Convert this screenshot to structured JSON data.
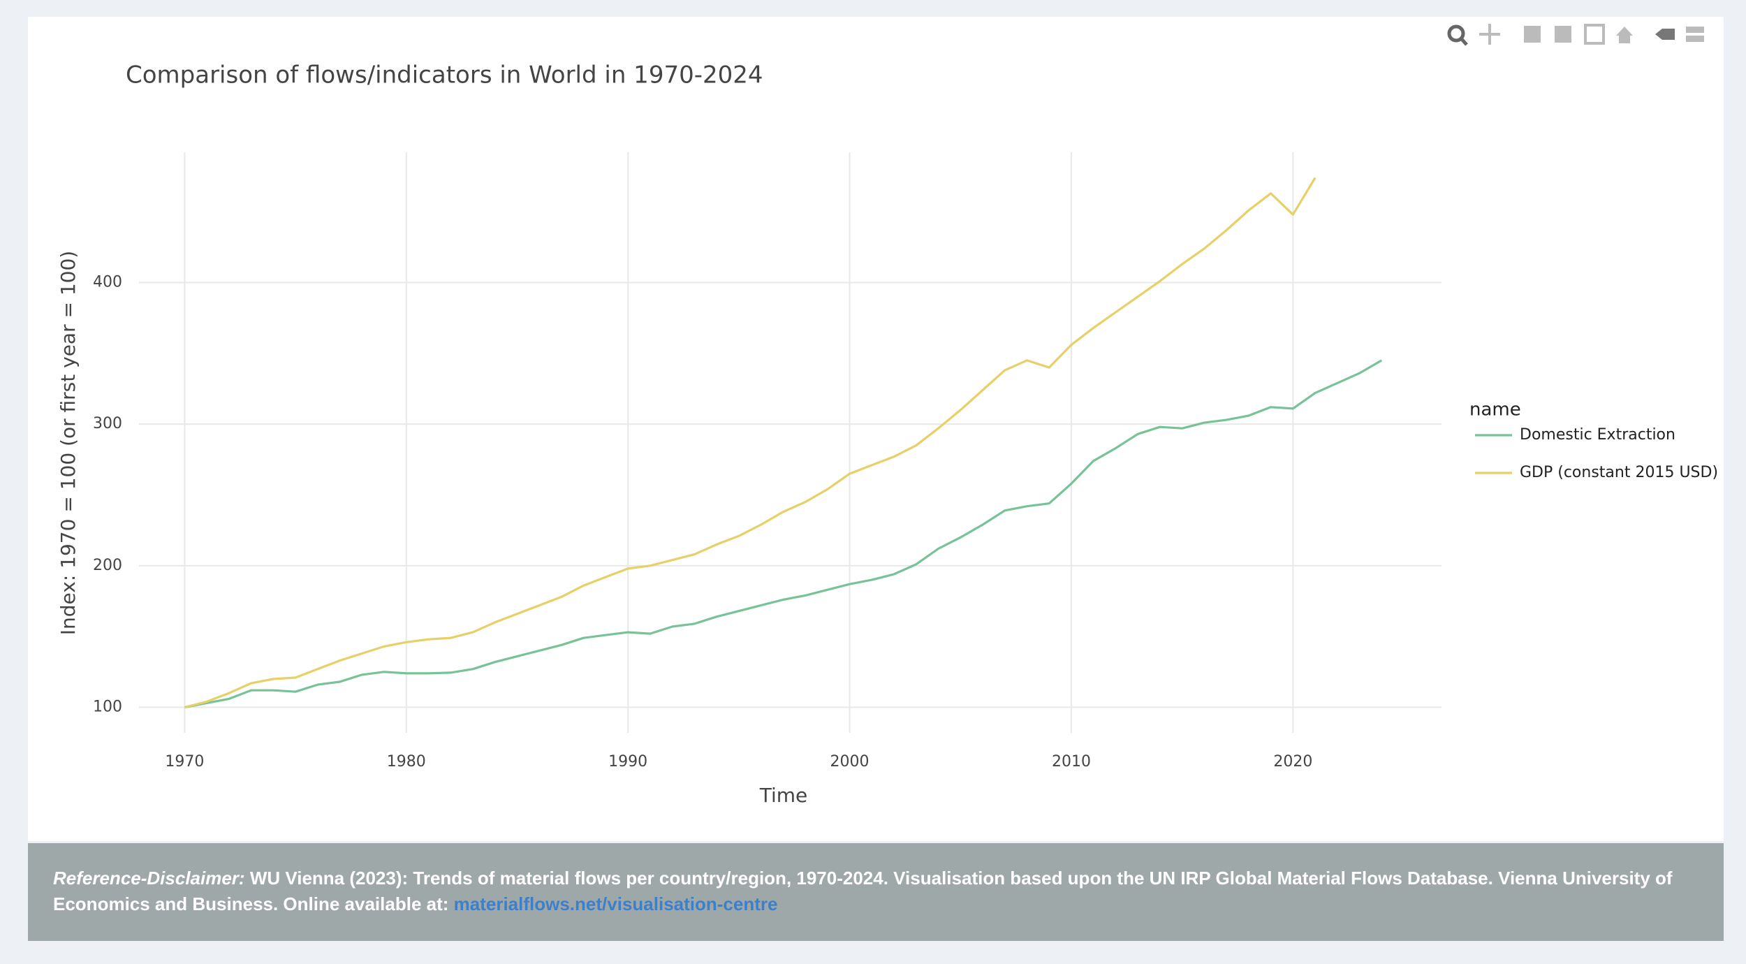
{
  "chart_data": {
    "type": "line",
    "title": "Comparison of flows/indicators in World in 1970-2024",
    "x_label": "Time",
    "y_label": "Index: 1970 = 100 (or first year = 100)",
    "legend_title": "name",
    "x": [
      1970,
      1971,
      1972,
      1973,
      1974,
      1975,
      1976,
      1977,
      1978,
      1979,
      1980,
      1981,
      1982,
      1983,
      1984,
      1985,
      1986,
      1987,
      1988,
      1989,
      1990,
      1991,
      1992,
      1993,
      1994,
      1995,
      1996,
      1997,
      1998,
      1999,
      2000,
      2001,
      2002,
      2003,
      2004,
      2005,
      2006,
      2007,
      2008,
      2009,
      2010,
      2011,
      2012,
      2013,
      2014,
      2015,
      2016,
      2017,
      2018,
      2019,
      2020,
      2021,
      2022,
      2023,
      2024
    ],
    "series": [
      {
        "name": "Domestic Extraction",
        "color": "#78c297",
        "values": [
          100,
          103,
          106,
          112,
          112,
          111,
          116,
          118,
          123,
          125,
          124,
          124,
          124.5,
          127,
          132,
          136,
          140,
          144,
          149,
          151,
          153,
          152,
          157,
          159,
          164,
          168,
          172,
          176,
          179,
          183,
          187,
          190,
          194,
          201,
          212,
          220,
          229,
          239,
          242,
          244,
          258,
          274,
          283,
          293,
          298,
          297,
          301,
          303,
          306,
          312,
          311,
          322,
          329,
          336,
          345
        ]
      },
      {
        "name": "GDP (constant 2015 USD)",
        "color": "#e6d067",
        "values": [
          100,
          104,
          110,
          117,
          120,
          121,
          127,
          133,
          138,
          143,
          146,
          148,
          149,
          153,
          160,
          166,
          172,
          178,
          186,
          192,
          198,
          200,
          204,
          208,
          215,
          221,
          229,
          238,
          245,
          254,
          265,
          271,
          277,
          285,
          297,
          310,
          324,
          338,
          345,
          340,
          356,
          368,
          379,
          390,
          401,
          413,
          424,
          437,
          451,
          463,
          448,
          474,
          null,
          null,
          null
        ]
      }
    ],
    "xlim": [
      1967.94,
      2026.7
    ],
    "xticks": [
      1970,
      1980,
      1990,
      2000,
      2010,
      2020
    ],
    "ylim": [
      82,
      492
    ],
    "yticks": [
      100,
      200,
      300,
      400
    ],
    "grid": true,
    "legend": "right"
  },
  "footer": {
    "label": "Reference-Disclaimer:",
    "text": "WU Vienna (2023): Trends of material flows per country/region, 1970-2024. Visualisation based upon the UN IRP Global Material Flows Database. Vienna University of Economics and Business. Online available at:",
    "link": "materialflows.net/visualisation-centre"
  }
}
